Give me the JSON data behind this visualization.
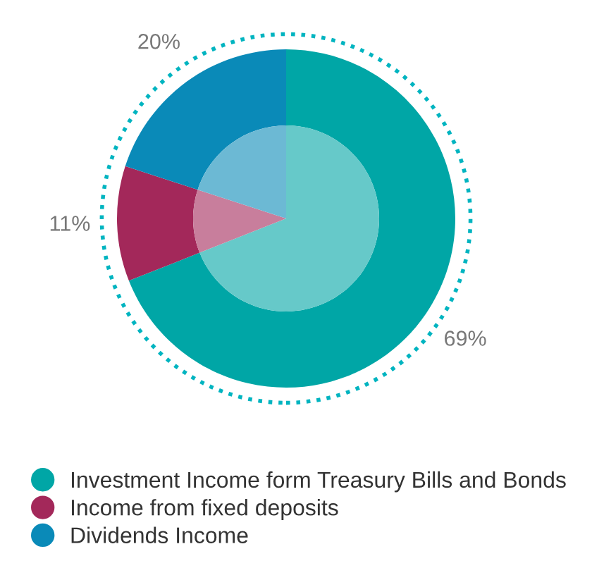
{
  "chart_data": {
    "type": "donut",
    "categories": [
      "Investment Income form Treasury Bills and Bonds",
      "Income from fixed deposits",
      "Dividends Income"
    ],
    "series": [
      {
        "values": [
          69,
          11,
          20
        ],
        "colors": [
          "#00a6a6",
          "#a3285a",
          "#0a8ab8"
        ],
        "value_labels": [
          "69%",
          "11%",
          "20%"
        ]
      },
      {
        "values": [
          69,
          11,
          20
        ],
        "colors": [
          "#66c9c9",
          "#c87e9c",
          "#6cb9d4"
        ]
      }
    ],
    "legend": "bottom left"
  }
}
